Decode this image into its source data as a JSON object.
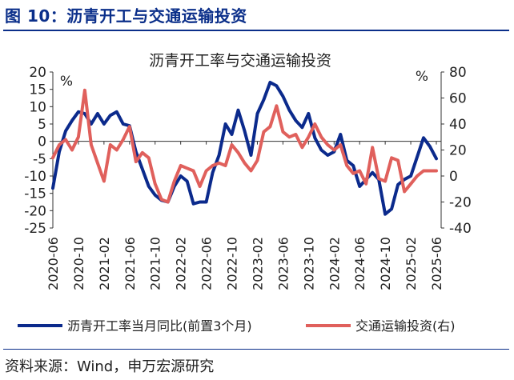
{
  "figure_label": "图 10：沥青开工与交通运输投资",
  "source": "资料来源：Wind，申万宏源研究",
  "colors": {
    "brand": "#0b2f8a",
    "series_blue": "#0b2a8c",
    "series_red": "#e0605c"
  },
  "chart_data": {
    "type": "line",
    "title": "沥青开工率与交通运输投资",
    "y_unit_left": "%",
    "y_unit_right": "%",
    "ylim_left": [
      -25,
      20
    ],
    "ylim_right": [
      -40,
      80
    ],
    "yticks_left": [
      20,
      15,
      10,
      5,
      0,
      -5,
      -10,
      -15,
      -20,
      -25
    ],
    "yticks_right": [
      80,
      60,
      40,
      20,
      0,
      -20,
      -40
    ],
    "xticks": [
      "2020-06",
      "2020-10",
      "2021-02",
      "2021-06",
      "2021-10",
      "2022-02",
      "2022-06",
      "2022-10",
      "2023-02",
      "2023-06",
      "2023-10",
      "2024-02",
      "2024-06",
      "2024-10",
      "2025-02",
      "2025-06"
    ],
    "grid": false,
    "legend_position": "bottom",
    "series": [
      {
        "name": "沥青开工率当月同比(前置3个月)",
        "axis": "left",
        "x": [
          "2020-06",
          "2020-07",
          "2020-08",
          "2020-09",
          "2020-10",
          "2020-11",
          "2020-12",
          "2021-01",
          "2021-02",
          "2021-03",
          "2021-04",
          "2021-05",
          "2021-06",
          "2021-07",
          "2021-08",
          "2021-09",
          "2021-10",
          "2021-11",
          "2021-12",
          "2022-01",
          "2022-02",
          "2022-03",
          "2022-04",
          "2022-05",
          "2022-06",
          "2022-07",
          "2022-08",
          "2022-09",
          "2022-10",
          "2022-11",
          "2022-12",
          "2023-01",
          "2023-02",
          "2023-03",
          "2023-04",
          "2023-05",
          "2023-06",
          "2023-07",
          "2023-08",
          "2023-09",
          "2023-10",
          "2023-11",
          "2023-12",
          "2024-01",
          "2024-02",
          "2024-03",
          "2024-04",
          "2024-05",
          "2024-06",
          "2024-07",
          "2024-08",
          "2024-09",
          "2024-10",
          "2024-11",
          "2024-12",
          "2025-01",
          "2025-02",
          "2025-03",
          "2025-04",
          "2025-05",
          "2025-06"
        ],
        "values": [
          -13.5,
          -3,
          3,
          6,
          8.5,
          8,
          5,
          8,
          5,
          7.5,
          8.5,
          5,
          4.5,
          -3,
          -8,
          -13,
          -15.5,
          -17,
          -17.5,
          -13,
          -10,
          -11.5,
          -18,
          -17.5,
          -17.5,
          -9,
          -4,
          5,
          2,
          9,
          3,
          -4,
          8,
          12,
          17,
          16,
          13,
          9,
          6,
          4,
          8,
          1,
          -2.5,
          -4,
          -3,
          2,
          -5.5,
          -7,
          -13,
          -11,
          -9,
          -11,
          -21,
          -19.5,
          -12.5,
          -11,
          -10,
          -4.5,
          1,
          -1.5,
          -5
        ]
      },
      {
        "name": "交通运输投资(右)",
        "axis": "right",
        "x": [
          "2020-06",
          "2020-07",
          "2020-08",
          "2020-09",
          "2020-10",
          "2020-11",
          "2020-12",
          "2021-01",
          "2021-02",
          "2021-03",
          "2021-04",
          "2021-05",
          "2021-06",
          "2021-07",
          "2021-08",
          "2021-09",
          "2021-10",
          "2021-11",
          "2021-12",
          "2022-01",
          "2022-02",
          "2022-03",
          "2022-04",
          "2022-05",
          "2022-06",
          "2022-07",
          "2022-08",
          "2022-09",
          "2022-10",
          "2022-11",
          "2022-12",
          "2023-01",
          "2023-02",
          "2023-03",
          "2023-04",
          "2023-05",
          "2023-06",
          "2023-07",
          "2023-08",
          "2023-09",
          "2023-10",
          "2023-11",
          "2023-12",
          "2024-01",
          "2024-02",
          "2024-03",
          "2024-04",
          "2024-05",
          "2024-06",
          "2024-07",
          "2024-08",
          "2024-09",
          "2024-10",
          "2024-11",
          "2024-12",
          "2025-01",
          "2025-02",
          "2025-03",
          "2025-04",
          "2025-05",
          "2025-06"
        ],
        "values": [
          14,
          24,
          28,
          20,
          30,
          66,
          24,
          10,
          -4,
          24,
          20,
          28,
          38,
          11,
          18,
          14,
          -6,
          -18,
          -20,
          -4,
          8,
          6,
          4,
          -8,
          4,
          8,
          10,
          8,
          24,
          18,
          10,
          4,
          12,
          34,
          38,
          54,
          34,
          30,
          32,
          22,
          30,
          40,
          30,
          24,
          20,
          24,
          8,
          2,
          4,
          -6,
          22,
          -2,
          -4,
          14,
          12,
          -12,
          -6,
          0,
          4,
          4,
          4
        ]
      }
    ]
  }
}
